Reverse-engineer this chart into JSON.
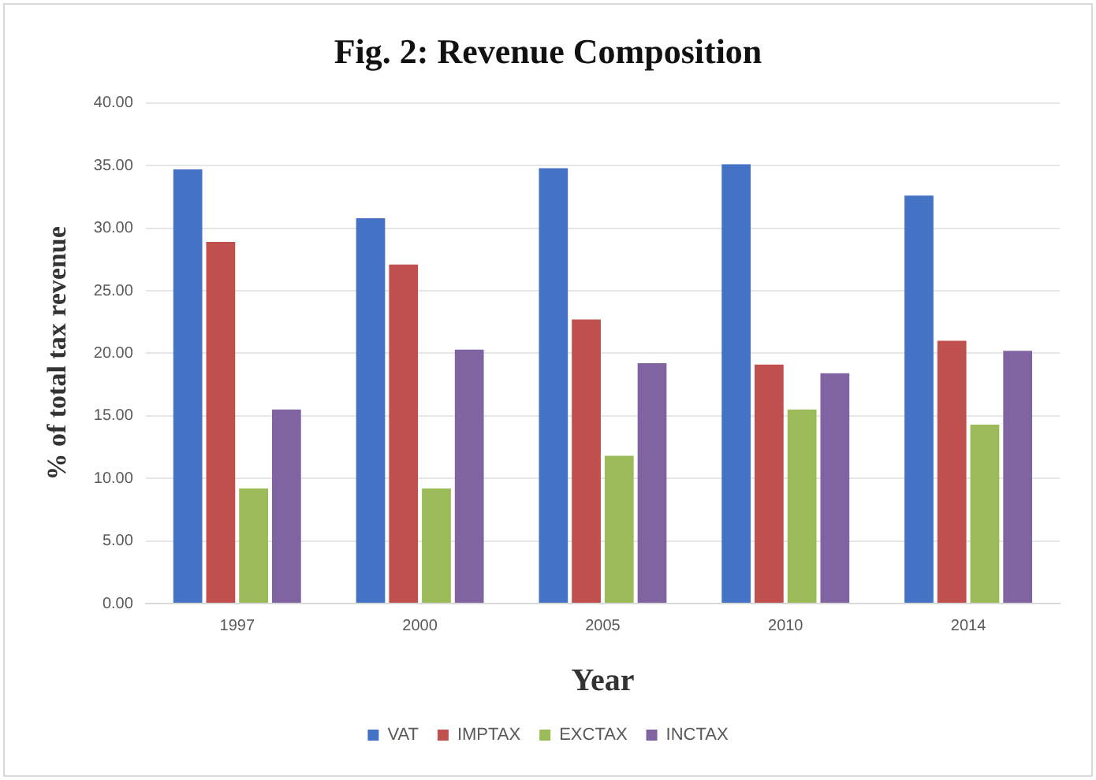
{
  "chart_data": {
    "type": "bar",
    "title": "Fig. 2: Revenue Composition",
    "xlabel": "Year",
    "ylabel": "% of total tax revenue",
    "categories": [
      "1997",
      "2000",
      "2005",
      "2010",
      "2014"
    ],
    "series": [
      {
        "name": "VAT",
        "color": "#4472c4",
        "values": [
          34.7,
          30.8,
          34.8,
          35.1,
          32.6
        ]
      },
      {
        "name": "IMPTAX",
        "color": "#c0504d",
        "values": [
          28.9,
          27.1,
          22.7,
          19.1,
          21.0
        ]
      },
      {
        "name": "EXCTAX",
        "color": "#9bbb59",
        "values": [
          9.2,
          9.2,
          11.8,
          15.5,
          14.3
        ]
      },
      {
        "name": "INCTAX",
        "color": "#8064a2",
        "values": [
          15.5,
          20.3,
          19.2,
          18.4,
          20.2
        ]
      }
    ],
    "ylim": [
      0,
      40
    ],
    "yticks": [
      {
        "value": 0,
        "label": "0.00"
      },
      {
        "value": 5,
        "label": "5.00"
      },
      {
        "value": 10,
        "label": "10.00"
      },
      {
        "value": 15,
        "label": "15.00"
      },
      {
        "value": 20,
        "label": "20.00"
      },
      {
        "value": 25,
        "label": "25.00"
      },
      {
        "value": 30,
        "label": "30.00"
      },
      {
        "value": 35,
        "label": "35.00"
      },
      {
        "value": 40,
        "label": "40.00"
      }
    ],
    "grid": "y",
    "legend": "bottom"
  }
}
